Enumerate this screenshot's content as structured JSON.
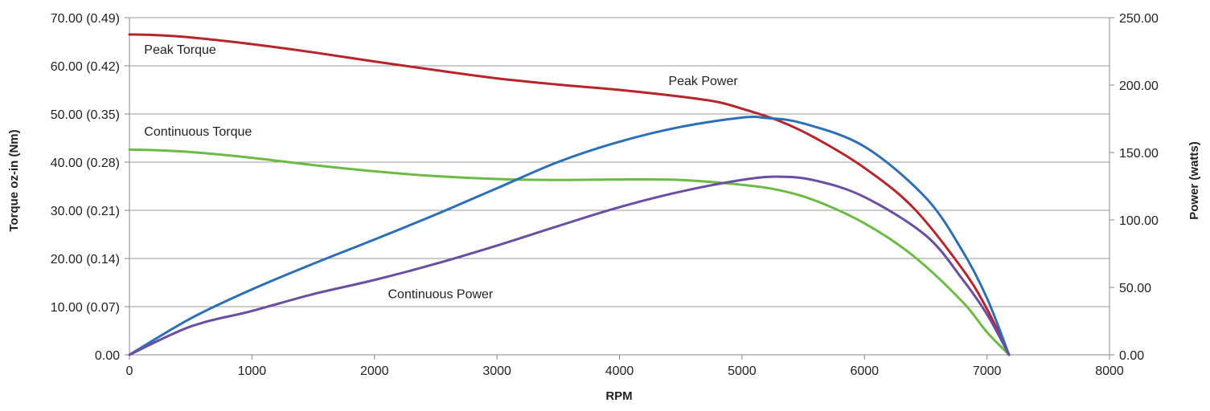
{
  "chart_data": {
    "type": "line",
    "title": "",
    "xlabel": "RPM",
    "ylabel_left": "Torque oz-in (Nm)",
    "ylabel_right": "Power (watts)",
    "xlim": [
      0,
      8000
    ],
    "ylim_left": [
      0,
      70
    ],
    "ylim_right": [
      0,
      250
    ],
    "grid": "horizontal",
    "x_ticks": [
      "0",
      "1000",
      "2000",
      "3000",
      "4000",
      "5000",
      "6000",
      "7000",
      "8000"
    ],
    "y_left_ticks": [
      "0.00",
      "10.00 (0.07)",
      "20.00 (0.14)",
      "30.00 (0.21)",
      "40.00 (0.28)",
      "50.00 (0.35)",
      "60.00 (0.42)",
      "70.00 (0.49)"
    ],
    "y_right_ticks": [
      "0.00",
      "50.00",
      "100.00",
      "150.00",
      "200.00",
      "250.00"
    ],
    "series": [
      {
        "name": "Peak Torque",
        "axis": "left",
        "color": "#b5252b",
        "x": [
          0,
          200,
          500,
          1000,
          1500,
          2000,
          2500,
          3000,
          3500,
          4000,
          4500,
          4800,
          5000,
          5300,
          5600,
          6000,
          6400,
          6800,
          7000,
          7180
        ],
        "y": [
          66.5,
          66.4,
          65.9,
          64.5,
          62.8,
          60.9,
          59.1,
          57.4,
          56.1,
          55.0,
          53.6,
          52.5,
          51.1,
          48.6,
          45.0,
          38.8,
          30.5,
          17.8,
          9.5,
          0
        ]
      },
      {
        "name": "Continuous Torque",
        "axis": "left",
        "color": "#6dbb45",
        "x": [
          0,
          200,
          500,
          1000,
          1500,
          2000,
          2500,
          3000,
          3500,
          4000,
          4500,
          5000,
          5300,
          5600,
          6000,
          6400,
          6800,
          7000,
          7180
        ],
        "y": [
          42.6,
          42.5,
          42.1,
          40.9,
          39.4,
          38.1,
          37.1,
          36.5,
          36.3,
          36.4,
          36.3,
          35.3,
          34.2,
          32.0,
          27.3,
          20.5,
          11.0,
          4.7,
          0
        ]
      },
      {
        "name": "Peak Power",
        "axis": "right",
        "color": "#2c6fb7",
        "x": [
          0,
          500,
          1000,
          1500,
          2000,
          2500,
          3000,
          3500,
          4000,
          4500,
          5000,
          5200,
          5500,
          6000,
          6500,
          6800,
          7000,
          7180
        ],
        "y": [
          0,
          27.0,
          48.5,
          67.5,
          85.5,
          104.0,
          123.5,
          143.0,
          158.0,
          169.0,
          175.9,
          175.6,
          171.6,
          154.4,
          116.5,
          77.0,
          42.0,
          0
        ]
      },
      {
        "name": "Continuous Power",
        "axis": "right",
        "color": "#6a4ea1",
        "x": [
          0,
          500,
          1000,
          1500,
          2000,
          2500,
          3000,
          3500,
          4000,
          4500,
          5000,
          5300,
          5600,
          6000,
          6500,
          6800,
          7000,
          7180
        ],
        "y": [
          0,
          21.0,
          32.5,
          45.0,
          55.5,
          67.5,
          81.0,
          95.5,
          109.5,
          121.0,
          129.7,
          132.1,
          129.2,
          117.0,
          88.5,
          56.0,
          30.0,
          0
        ]
      }
    ],
    "annotations": [
      {
        "text": "Peak Torque",
        "x": 120,
        "y": 62.5,
        "axis": "left"
      },
      {
        "text": "Continuous Torque",
        "x": 120,
        "y": 45.5,
        "axis": "left"
      },
      {
        "text": "Peak Power",
        "x": 4400,
        "y": 200,
        "axis": "right"
      },
      {
        "text": "Continuous Power",
        "x": 2110,
        "y": 42,
        "axis": "right"
      }
    ]
  }
}
